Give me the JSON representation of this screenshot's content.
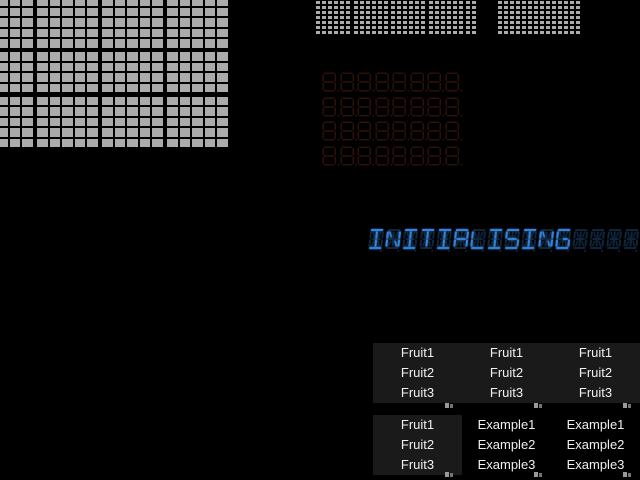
{
  "window": {
    "background": "#000000"
  },
  "matrix_grids": {
    "cell_color": "#ababab",
    "large": {
      "column_groups": [
        3,
        5,
        5,
        5
      ],
      "row_groups": [
        5,
        4,
        5
      ]
    },
    "char_matrix": {
      "groups": 5,
      "cols_per_group": 6,
      "rows": 7
    },
    "plain_matrix": {
      "cols": 14,
      "rows": 7
    }
  },
  "seven_segment_display": {
    "rows": 4,
    "cols": 8,
    "dim_color": "#2e1106"
  },
  "led_display": {
    "text": "INITIALISING",
    "cells": 16,
    "lit_color": "#2f85e0",
    "dim_color": "#10253d"
  },
  "lists": {
    "text_color": "#f0f0f0",
    "panel_color": "#1a1a1a",
    "row1": [
      {
        "items": [
          "Fruit1",
          "Fruit2",
          "Fruit3"
        ]
      },
      {
        "items": [
          "Fruit1",
          "Fruit2",
          "Fruit3"
        ]
      },
      {
        "items": [
          "Fruit1",
          "Fruit2",
          "Fruit3"
        ]
      }
    ],
    "row2": [
      {
        "items": [
          "Fruit1",
          "Fruit2",
          "Fruit3"
        ]
      },
      {
        "items": [
          "Example1",
          "Example2",
          "Example3"
        ]
      },
      {
        "items": [
          "Example1",
          "Example2",
          "Example3"
        ]
      }
    ]
  }
}
